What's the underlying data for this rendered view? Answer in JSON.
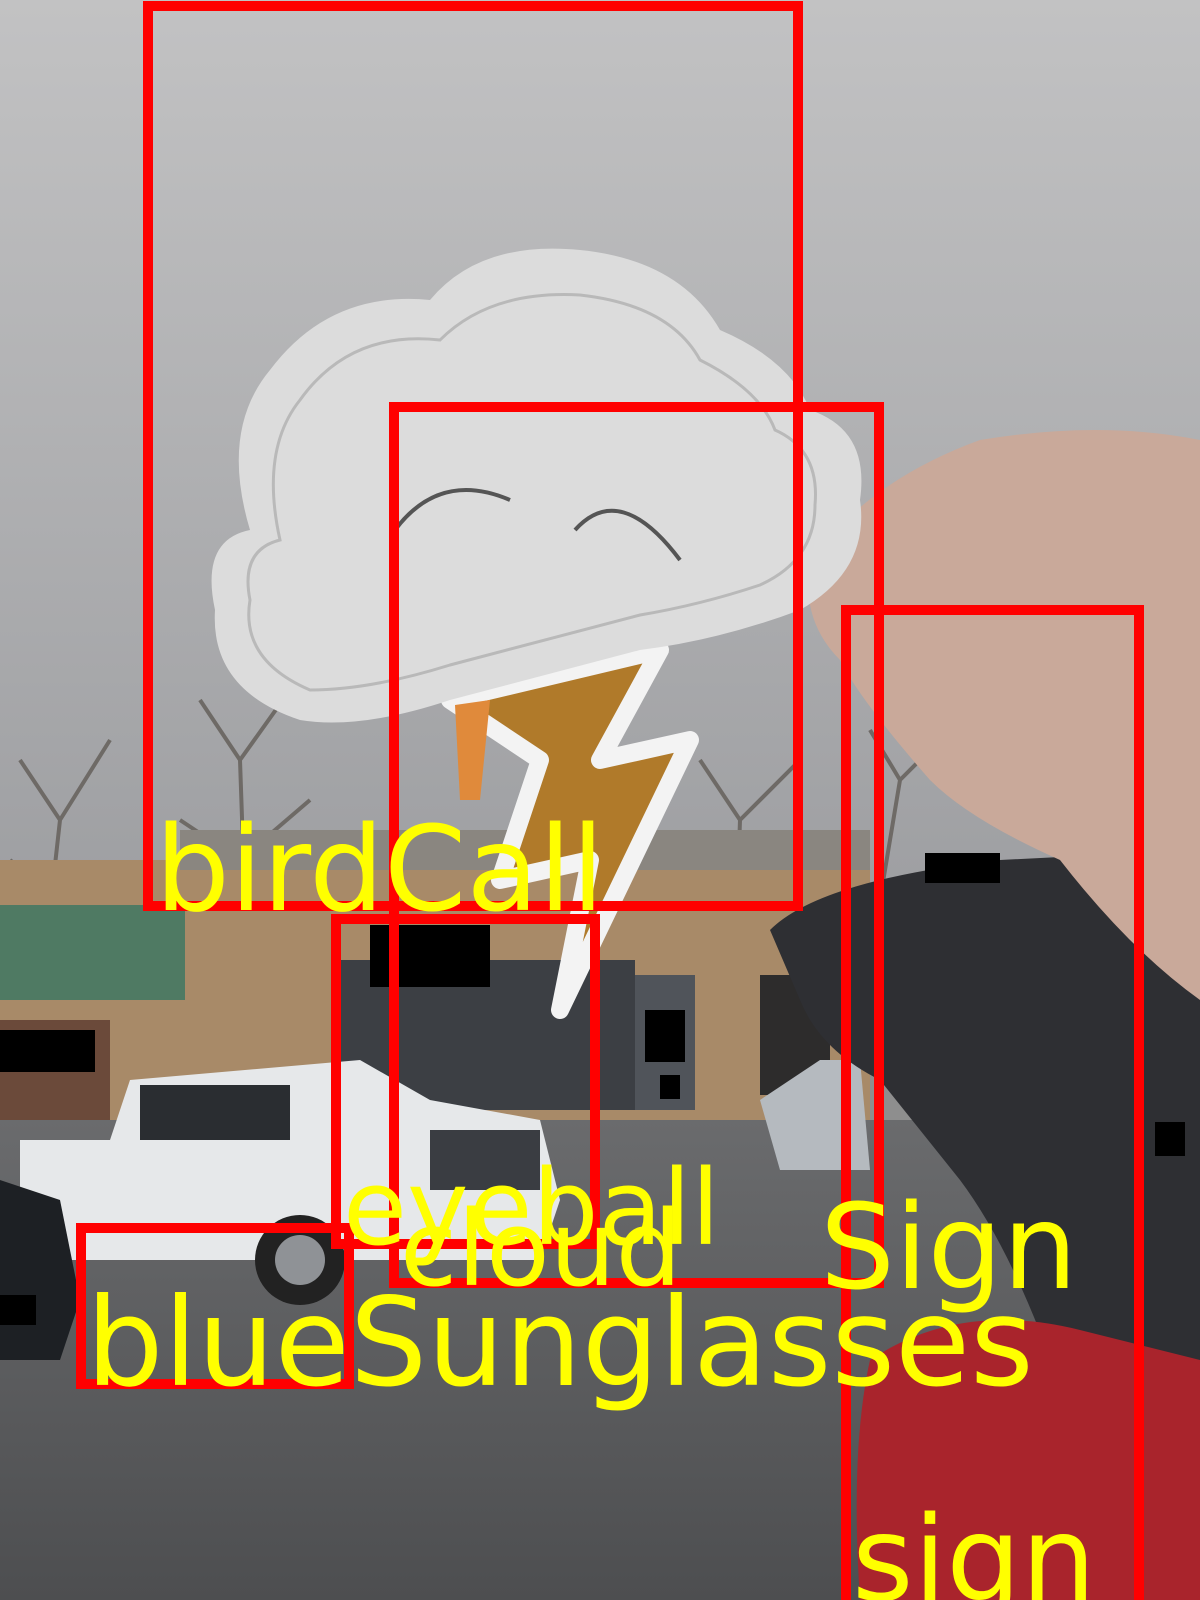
{
  "scene": {
    "colors": {
      "sky_top": "#bcbcbd",
      "sky_bottom": "#9c9da0",
      "road": "#5b5c5e",
      "building": "#a88a68",
      "awning": "#4f7a63",
      "cloud_sticker": "#dcdcdc",
      "bolt_gold": "#b07a2a",
      "bolt_orange": "#e08a3b",
      "truck": "#e6e8ea",
      "hand": "#c9a99a",
      "car_red": "#a9242c",
      "mirror": "#2e2f33"
    }
  },
  "annotations": {
    "box_color": "#ff0000",
    "label_color": "#ffff00",
    "labels": {
      "bird_call": "birdCall",
      "eyeball": "eyeball",
      "cloud": "cloud",
      "sign_upper": "Sign",
      "blue_sunglasses": "blueSunglasses",
      "sign_lower": "sign"
    }
  }
}
